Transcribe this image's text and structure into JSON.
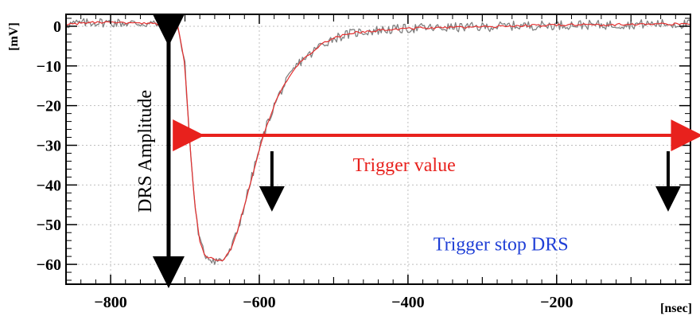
{
  "chart_data": {
    "type": "line",
    "title": "",
    "xlabel": "[nsec]",
    "ylabel": "[mV]",
    "xlim": [
      -860,
      -20
    ],
    "ylim": [
      -65,
      3
    ],
    "grid": true,
    "x_ticks": [
      -800,
      -600,
      -400,
      -200
    ],
    "y_ticks": [
      0,
      -10,
      -20,
      -30,
      -40,
      -50,
      -60
    ],
    "x_tick_labels": [
      "−800",
      "−600",
      "−400",
      "−200"
    ],
    "y_tick_labels": [
      "0",
      "−10",
      "−20",
      "−30",
      "−40",
      "−50",
      "−60"
    ],
    "series": [
      {
        "color": "#808080",
        "x": [
          -860,
          -820,
          -780,
          -740,
          -710,
          -700,
          -695,
          -690,
          -685,
          -680,
          -675,
          -670,
          -660,
          -650,
          -640,
          -630,
          -620,
          -610,
          -600,
          -590,
          -580,
          -570,
          -560,
          -550,
          -540,
          -530,
          -520,
          -510,
          -500,
          -490,
          -480,
          -470,
          -460,
          -440,
          -420,
          -400,
          -380,
          -360,
          -340,
          -300,
          -260,
          -220,
          -180,
          -140,
          -100,
          -60,
          -20
        ],
        "y": [
          0.5,
          1.0,
          0.8,
          0.6,
          0.5,
          -10,
          -25,
          -38,
          -48,
          -54,
          -57,
          -58,
          -59,
          -59,
          -57,
          -52,
          -45,
          -38,
          -31,
          -25,
          -20,
          -16,
          -13,
          -10,
          -8,
          -7,
          -5,
          -4,
          -3,
          -2.5,
          -2,
          -1.6,
          -1.4,
          -1,
          -0.8,
          -0.6,
          -0.4,
          -0.5,
          -0.3,
          -0.2,
          0.1,
          0.2,
          0.4,
          0.3,
          0.5,
          0.6,
          0.5
        ],
        "noise": 1.2
      },
      {
        "color": "#e53030",
        "x": [
          -860,
          -820,
          -780,
          -740,
          -710,
          -700,
          -695,
          -690,
          -685,
          -680,
          -675,
          -670,
          -660,
          -650,
          -640,
          -630,
          -620,
          -610,
          -600,
          -590,
          -580,
          -570,
          -560,
          -550,
          -540,
          -530,
          -520,
          -510,
          -500,
          -490,
          -480,
          -470,
          -460,
          -440,
          -420,
          -400,
          -380,
          -360,
          -340,
          -300,
          -260,
          -220,
          -180,
          -140,
          -100,
          -60,
          -20
        ],
        "y": [
          0.5,
          1.0,
          0.8,
          0.6,
          0.5,
          -10,
          -25,
          -38,
          -48,
          -54,
          -57,
          -58,
          -59,
          -59,
          -57,
          -52,
          -45,
          -38,
          -31,
          -25,
          -20,
          -16,
          -13,
          -10,
          -8,
          -7,
          -5,
          -4,
          -3,
          -2.5,
          -2,
          -1.6,
          -1.4,
          -1,
          -0.8,
          -0.6,
          -0.4,
          -0.5,
          -0.3,
          -0.2,
          0.1,
          0.2,
          0.4,
          0.3,
          0.5,
          0.6,
          0.5
        ],
        "noise": 0.3
      }
    ],
    "annotations": {
      "drs_amplitude": "DRS Amplitude",
      "trigger_value": "Trigger value",
      "trigger_stop": "Trigger stop DRS"
    },
    "colors": {
      "frame": "#000000",
      "grid": "#bfbfbf",
      "raw_trace": "#808080",
      "smooth_trace": "#e53030",
      "trigger_value": "#e8211d",
      "trigger_stop": "#1f3fd6",
      "amplitude": "#000000"
    }
  }
}
